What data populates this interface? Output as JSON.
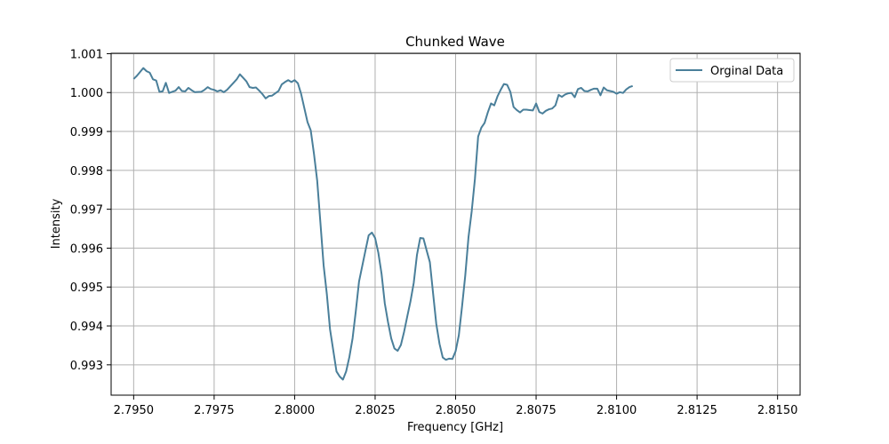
{
  "chart_data": {
    "type": "line",
    "title": "Chunked Wave",
    "xlabel": "Frequency [GHz]",
    "ylabel": "Intensity",
    "xlim": [
      2.7943,
      2.8157
    ],
    "ylim": [
      0.99222,
      1.00101
    ],
    "grid": true,
    "legend_position": "top-right",
    "x_ticks": [
      "2.7950",
      "2.7975",
      "2.8000",
      "2.8025",
      "2.8050",
      "2.8075",
      "2.8100",
      "2.8125",
      "2.8150"
    ],
    "y_ticks": [
      "0.993",
      "0.994",
      "0.995",
      "0.996",
      "0.997",
      "0.998",
      "0.999",
      "1.000",
      "1.001"
    ],
    "series": [
      {
        "name": "Orginal Data",
        "color": "#4a7f9a",
        "points": [
          [
            2.795,
            1.00035
          ],
          [
            2.7951,
            1.00043
          ],
          [
            2.7953,
            1.00063
          ],
          [
            2.7954,
            1.00055
          ],
          [
            2.7955,
            1.00051
          ],
          [
            2.7956,
            1.00034
          ],
          [
            2.7957,
            1.00031
          ],
          [
            2.7958,
            1.00002
          ],
          [
            2.7959,
            1.00003
          ],
          [
            2.796,
            1.00025
          ],
          [
            2.7961,
            0.99999
          ],
          [
            2.7963,
            1.00005
          ],
          [
            2.7964,
            1.00014
          ],
          [
            2.7965,
            1.00004
          ],
          [
            2.7966,
            1.00003
          ],
          [
            2.7967,
            1.00012
          ],
          [
            2.7968,
            1.00006
          ],
          [
            2.7969,
            1.00001
          ],
          [
            2.7971,
            1.00002
          ],
          [
            2.7972,
            1.00007
          ],
          [
            2.7973,
            1.00014
          ],
          [
            2.7974,
            1.00009
          ],
          [
            2.7975,
            1.00007
          ],
          [
            2.7976,
            1.00003
          ],
          [
            2.7977,
            1.00006
          ],
          [
            2.7978,
            1.00001
          ],
          [
            2.7979,
            1.00007
          ],
          [
            2.7981,
            1.00025
          ],
          [
            2.7982,
            1.00034
          ],
          [
            2.7983,
            1.00047
          ],
          [
            2.7984,
            1.00038
          ],
          [
            2.7985,
            1.00029
          ],
          [
            2.7986,
            1.00014
          ],
          [
            2.7987,
            1.00012
          ],
          [
            2.7988,
            1.00013
          ],
          [
            2.7989,
            1.00005
          ],
          [
            2.799,
            0.99996
          ],
          [
            2.7991,
            0.99985
          ],
          [
            2.7992,
            0.99991
          ],
          [
            2.7993,
            0.99992
          ],
          [
            2.7994,
            0.99998
          ],
          [
            2.7995,
            1.00004
          ],
          [
            2.7996,
            1.00021
          ],
          [
            2.7997,
            1.00027
          ],
          [
            2.7998,
            1.00032
          ],
          [
            2.7999,
            1.00027
          ],
          [
            2.8,
            1.00032
          ],
          [
            2.8001,
            1.00024
          ],
          [
            2.8002,
            0.99997
          ],
          [
            2.8004,
            0.99924
          ],
          [
            2.8005,
            0.99903
          ],
          [
            2.8006,
            0.99843
          ],
          [
            2.8007,
            0.99774
          ],
          [
            2.8008,
            0.99666
          ],
          [
            2.8009,
            0.99556
          ],
          [
            2.801,
            0.99482
          ],
          [
            2.8011,
            0.99391
          ],
          [
            2.8013,
            0.99283
          ],
          [
            2.8014,
            0.9927
          ],
          [
            2.8015,
            0.99262
          ],
          [
            2.8016,
            0.99283
          ],
          [
            2.8017,
            0.9932
          ],
          [
            2.8018,
            0.99368
          ],
          [
            2.8019,
            0.99438
          ],
          [
            2.802,
            0.99514
          ],
          [
            2.8022,
            0.99594
          ],
          [
            2.8023,
            0.99633
          ],
          [
            2.8024,
            0.9964
          ],
          [
            2.8025,
            0.99626
          ],
          [
            2.8026,
            0.99588
          ],
          [
            2.8027,
            0.99534
          ],
          [
            2.8028,
            0.99458
          ],
          [
            2.8029,
            0.9941
          ],
          [
            2.803,
            0.99368
          ],
          [
            2.8031,
            0.99342
          ],
          [
            2.8032,
            0.99336
          ],
          [
            2.8033,
            0.99351
          ],
          [
            2.8034,
            0.99385
          ],
          [
            2.8035,
            0.99425
          ],
          [
            2.8036,
            0.99464
          ],
          [
            2.8037,
            0.99511
          ],
          [
            2.8038,
            0.99583
          ],
          [
            2.8039,
            0.99626
          ],
          [
            2.804,
            0.99625
          ],
          [
            2.8041,
            0.99594
          ],
          [
            2.8042,
            0.99564
          ],
          [
            2.8043,
            0.99484
          ],
          [
            2.8044,
            0.99405
          ],
          [
            2.8045,
            0.99354
          ],
          [
            2.8046,
            0.99319
          ],
          [
            2.8047,
            0.99313
          ],
          [
            2.8048,
            0.99316
          ],
          [
            2.8049,
            0.99315
          ],
          [
            2.805,
            0.99335
          ],
          [
            2.8051,
            0.99376
          ],
          [
            2.8052,
            0.9945
          ],
          [
            2.8053,
            0.9953
          ],
          [
            2.8054,
            0.99628
          ],
          [
            2.8055,
            0.99695
          ],
          [
            2.8056,
            0.99778
          ],
          [
            2.8057,
            0.99887
          ],
          [
            2.8058,
            0.9991
          ],
          [
            2.8059,
            0.99922
          ],
          [
            2.806,
            0.99949
          ],
          [
            2.8061,
            0.99972
          ],
          [
            2.8062,
            0.99967
          ],
          [
            2.8063,
            0.9999
          ],
          [
            2.8064,
            1.00007
          ],
          [
            2.8065,
            1.00022
          ],
          [
            2.8066,
            1.0002
          ],
          [
            2.8067,
            1.00002
          ],
          [
            2.8068,
            0.99963
          ],
          [
            2.8069,
            0.99955
          ],
          [
            2.807,
            0.99949
          ],
          [
            2.8071,
            0.99956
          ],
          [
            2.8072,
            0.99956
          ],
          [
            2.8073,
            0.99955
          ],
          [
            2.8074,
            0.99954
          ],
          [
            2.8075,
            0.99972
          ],
          [
            2.8076,
            0.9995
          ],
          [
            2.8077,
            0.99946
          ],
          [
            2.8078,
            0.99953
          ],
          [
            2.8079,
            0.99957
          ],
          [
            2.808,
            0.99959
          ],
          [
            2.8081,
            0.99967
          ],
          [
            2.8082,
            0.99994
          ],
          [
            2.8083,
            0.99989
          ],
          [
            2.8084,
            0.99995
          ],
          [
            2.8085,
            0.99998
          ],
          [
            2.8086,
            0.99999
          ],
          [
            2.8087,
            0.99988
          ],
          [
            2.8088,
            1.00009
          ],
          [
            2.8089,
            1.00012
          ],
          [
            2.809,
            1.00004
          ],
          [
            2.8091,
            1.00003
          ],
          [
            2.8092,
            1.00007
          ],
          [
            2.8093,
            1.0001
          ],
          [
            2.8094,
            1.0001
          ],
          [
            2.8095,
            0.99993
          ],
          [
            2.8096,
            1.00013
          ],
          [
            2.8097,
            1.00006
          ],
          [
            2.8098,
            1.00004
          ],
          [
            2.8099,
            1.00002
          ],
          [
            2.81,
            0.99997
          ],
          [
            2.8101,
            1.00001
          ],
          [
            2.8102,
            0.99999
          ],
          [
            2.8103,
            1.00008
          ],
          [
            2.8104,
            1.00014
          ],
          [
            2.8105,
            1.00017
          ]
        ]
      }
    ]
  }
}
